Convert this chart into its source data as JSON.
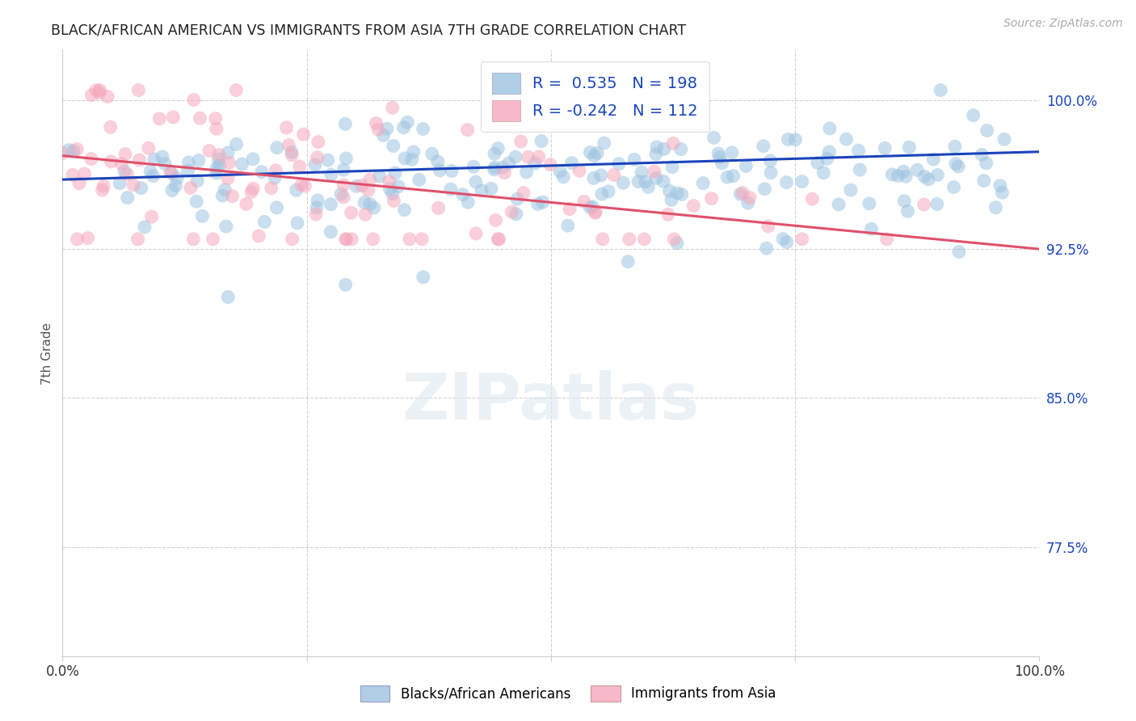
{
  "title": "BLACK/AFRICAN AMERICAN VS IMMIGRANTS FROM ASIA 7TH GRADE CORRELATION CHART",
  "source": "Source: ZipAtlas.com",
  "ylabel": "7th Grade",
  "blue_R": 0.535,
  "blue_N": 198,
  "pink_R": -0.242,
  "pink_N": 112,
  "blue_color": "#9dc4e0",
  "pink_color": "#f5a8bc",
  "blue_line_color": "#1a44bb",
  "pink_line_color": "#e0506a",
  "blue_label": "Blacks/African Americans",
  "pink_label": "Immigrants from Asia",
  "xlim": [
    0.0,
    1.0
  ],
  "ylim": [
    0.72,
    1.025
  ],
  "yticks": [
    0.775,
    0.85,
    0.925,
    1.0
  ],
  "ytick_labels": [
    "77.5%",
    "85.0%",
    "92.5%",
    "100.0%"
  ],
  "xticks": [
    0.0,
    0.25,
    0.5,
    0.75,
    1.0
  ],
  "xtick_labels": [
    "0.0%",
    "",
    "",
    "",
    "100.0%"
  ],
  "watermark": "ZIPatlas",
  "background_color": "#ffffff",
  "grid_color": "#cccccc",
  "title_color": "#222222",
  "label_color_blue": "#1a44bb",
  "label_color_red": "#cc2222",
  "blue_trend_start": 0.96,
  "blue_trend_end": 0.974,
  "pink_trend_start": 0.972,
  "pink_trend_end": 0.925
}
